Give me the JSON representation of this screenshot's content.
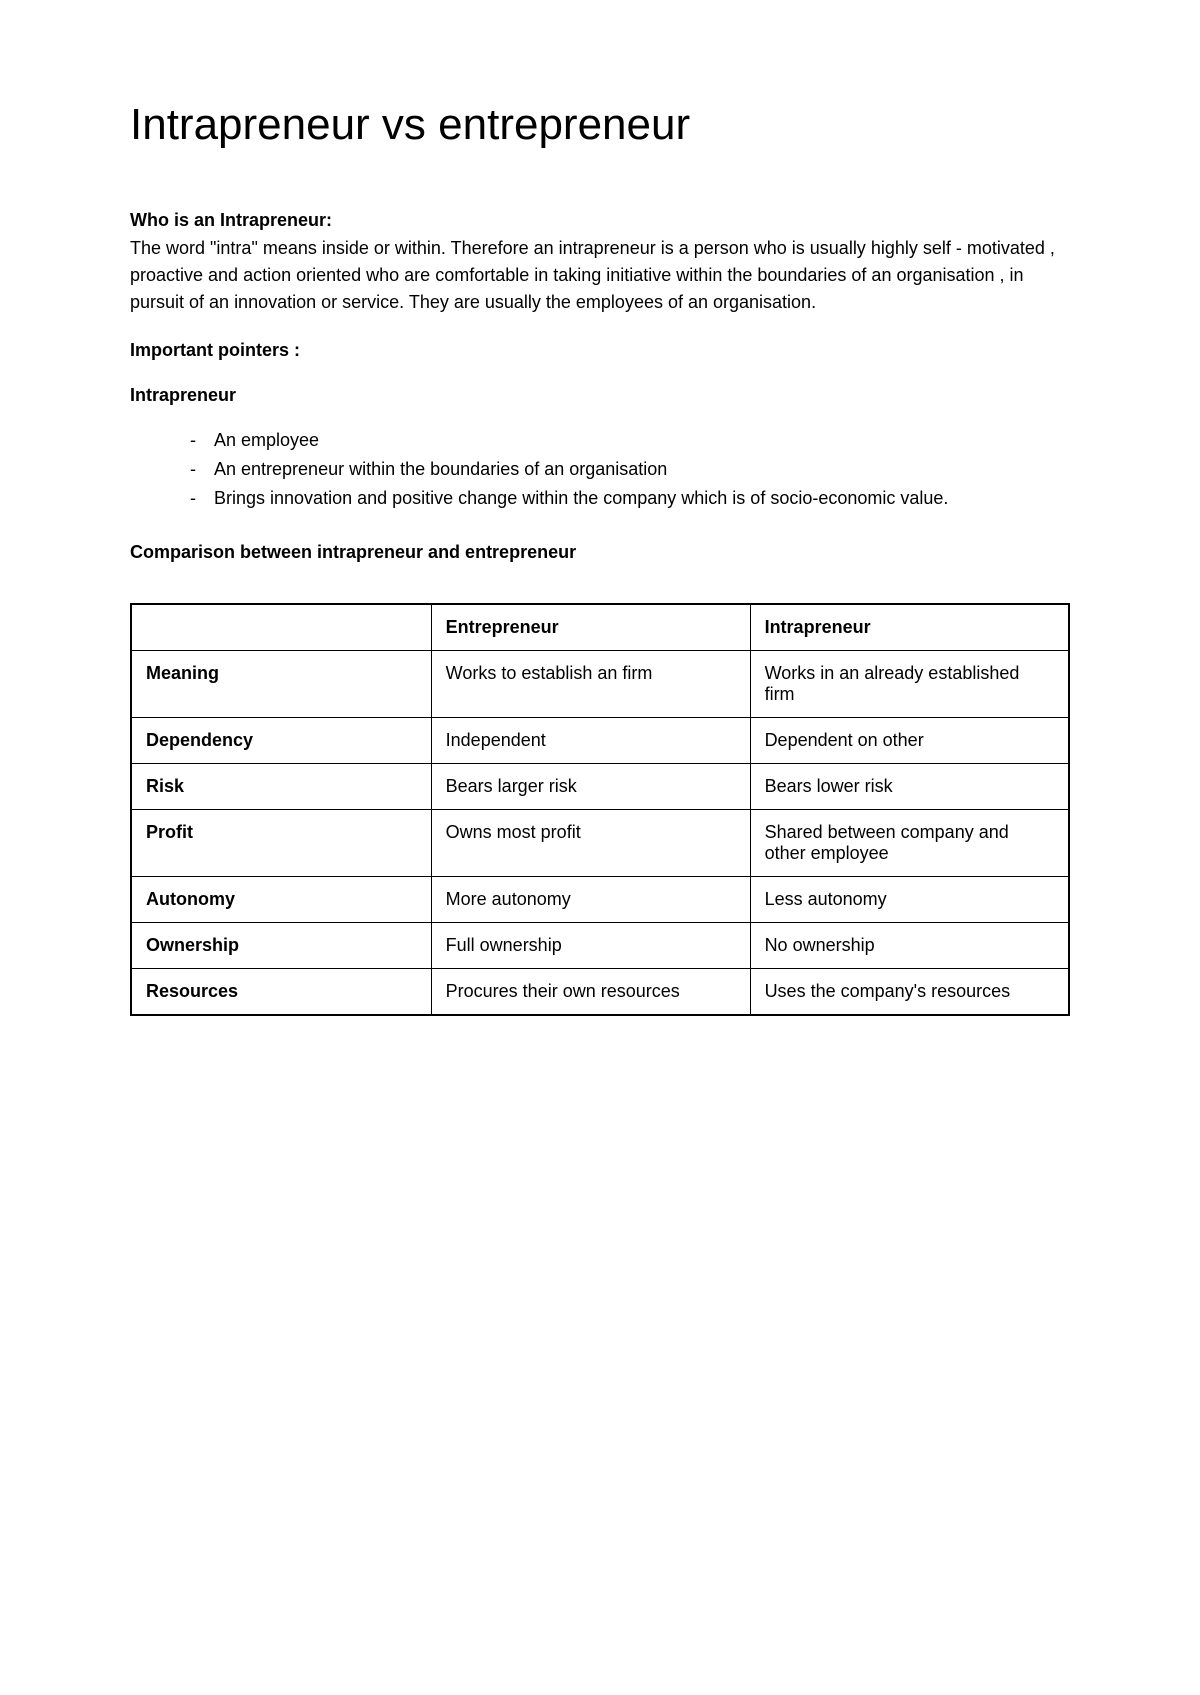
{
  "title": "Intrapreneur vs entrepreneur",
  "section1": {
    "heading": "Who is an Intrapreneur:",
    "body": "The word \"intra\" means inside or within. Therefore an intrapreneur is a person who is usually highly self - motivated ,  proactive and action oriented who are comfortable in taking initiative within the boundaries of an organisation , in pursuit of an innovation or service. They are usually the employees of an organisation."
  },
  "pointers": {
    "heading": "Important pointers :",
    "subheading": "Intrapreneur",
    "items": [
      "An employee",
      "An entrepreneur within the boundaries of an organisation",
      "Brings innovation and positive change within the company which is of socio-economic value."
    ]
  },
  "comparison": {
    "heading": "Comparison between intrapreneur and entrepreneur",
    "headers": {
      "col1": "",
      "col2": "Entrepreneur",
      "col3": "Intrapreneur"
    },
    "rows": [
      {
        "label": "Meaning",
        "entrepreneur": "Works to establish an firm",
        "intrapreneur": "Works in an already established firm"
      },
      {
        "label": "Dependency",
        "entrepreneur": "Independent",
        "intrapreneur": "Dependent on other"
      },
      {
        "label": "Risk",
        "entrepreneur": "Bears larger risk",
        "intrapreneur": "Bears lower risk"
      },
      {
        "label": "Profit",
        "entrepreneur": "Owns most profit",
        "intrapreneur": "Shared between company and other employee"
      },
      {
        "label": "Autonomy",
        "entrepreneur": "More autonomy",
        "intrapreneur": "Less autonomy"
      },
      {
        "label": "Ownership",
        "entrepreneur": "Full ownership",
        "intrapreneur": "No ownership"
      },
      {
        "label": "Resources",
        "entrepreneur": "Procures their own resources",
        "intrapreneur": "Uses the company's resources"
      }
    ]
  },
  "colors": {
    "text": "#000000",
    "background": "#ffffff",
    "border": "#000000"
  },
  "typography": {
    "title_fontsize": 44,
    "body_fontsize": 18,
    "font_family": "Arial"
  }
}
